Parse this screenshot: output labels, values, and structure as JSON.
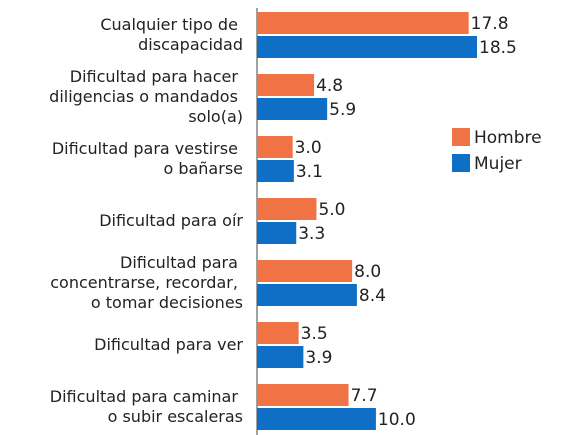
{
  "chart_data": {
    "type": "bar",
    "orientation": "horizontal",
    "categories": [
      "Cualquier tipo de discapacidad",
      "Dificultad para hacer diligencias o mandados solo(a)",
      "Dificultad para vestirse o bañarse",
      "Dificultad para oír",
      "Dificultad para concentrarse, recordar, o tomar decisiones",
      "Dificultad para ver",
      "Dificultad para caminar o subir escaleras"
    ],
    "series": [
      {
        "name": "Hombre",
        "color": "#f07346",
        "values": [
          17.8,
          4.8,
          3.0,
          5.0,
          8.0,
          3.5,
          7.7
        ],
        "value_labels": [
          "17.8",
          "4.8",
          "3.0",
          "5.0",
          "8.0",
          "3.5",
          "7.7"
        ]
      },
      {
        "name": "Mujer",
        "color": "#0f6fc6",
        "values": [
          18.5,
          5.9,
          3.1,
          3.3,
          8.4,
          3.9,
          10.0
        ],
        "value_labels": [
          "18.5",
          "5.9",
          "3.1",
          "3.3",
          "8.4",
          "3.9",
          "10.0"
        ]
      }
    ],
    "legend": "right"
  }
}
